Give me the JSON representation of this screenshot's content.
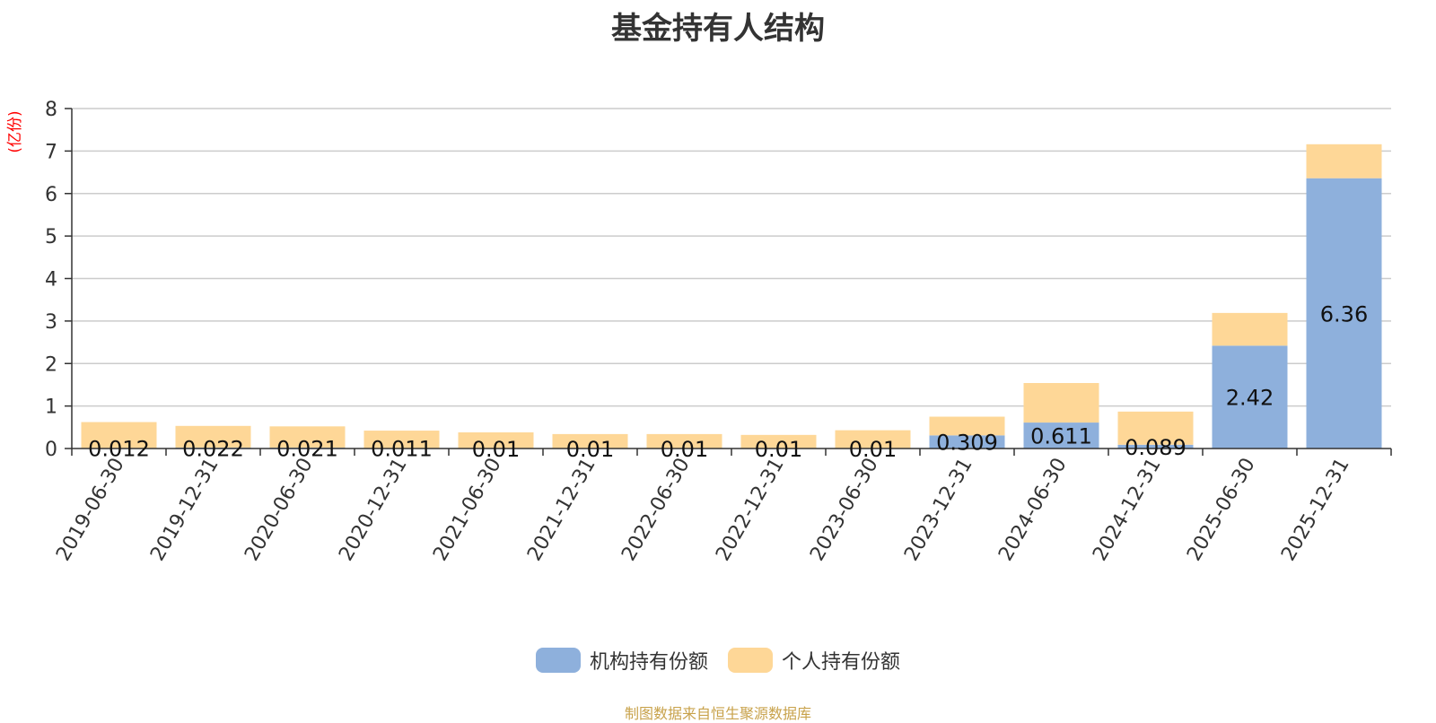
{
  "chart_data": {
    "type": "bar",
    "stacked": true,
    "title": "基金持有人结构",
    "ylabel": "(亿份)",
    "ylim": [
      0,
      8
    ],
    "yticks": [
      "0",
      "1",
      "2",
      "3",
      "4",
      "5",
      "6",
      "7",
      "8"
    ],
    "categories": [
      "2019-06-30",
      "2019-12-31",
      "2020-06-30",
      "2020-12-31",
      "2021-06-30",
      "2021-12-31",
      "2022-06-30",
      "2022-12-31",
      "2023-06-30",
      "2023-12-31",
      "2024-06-30",
      "2024-12-31",
      "2025-06-30",
      "2025-12-31"
    ],
    "series": [
      {
        "name": "机构持有份额",
        "color": "#8eb0dc",
        "values": [
          0.012,
          0.022,
          0.021,
          0.011,
          0.01,
          0.01,
          0.01,
          0.01,
          0.01,
          0.309,
          0.611,
          0.089,
          2.42,
          6.36
        ],
        "labels": [
          "0.012",
          "0.022",
          "0.021",
          "0.011",
          "0.01",
          "0.01",
          "0.01",
          "0.01",
          "0.01",
          "0.309",
          "0.611",
          "0.089",
          "2.42",
          "6.36"
        ]
      },
      {
        "name": "个人持有份额",
        "color": "#fed797",
        "values": [
          0.61,
          0.51,
          0.5,
          0.41,
          0.37,
          0.33,
          0.33,
          0.31,
          0.42,
          0.44,
          0.93,
          0.78,
          0.77,
          0.8
        ]
      }
    ],
    "legend_position": "bottom",
    "grid": true
  },
  "footer": {
    "source": "制图数据来自恒生聚源数据库"
  }
}
